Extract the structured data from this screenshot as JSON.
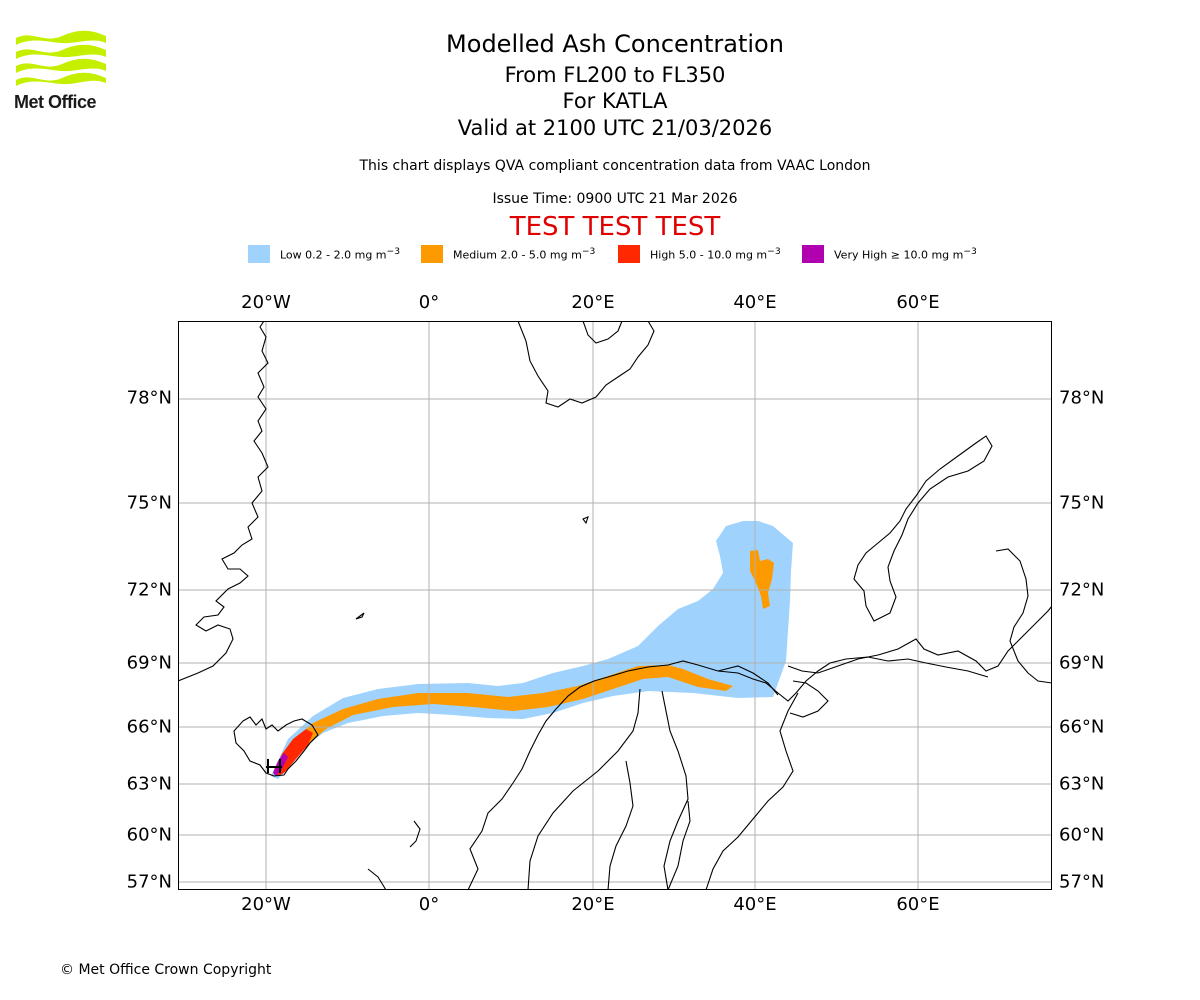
{
  "logo": {
    "name": "Met Office"
  },
  "title": {
    "main": "Modelled Ash Concentration",
    "levels": "From FL200 to FL350",
    "volcano": "For KATLA",
    "valid": "Valid at 2100 UTC 21/03/2026",
    "description": "This chart displays QVA compliant concentration data from VAAC London",
    "issue_time": "Issue Time: 0900 UTC 21 Mar 2026",
    "test_banner": "TEST TEST TEST"
  },
  "legend": {
    "low": {
      "label": "Low 0.2 - 2.0 mg m",
      "color": "#9fd3fd"
    },
    "medium": {
      "label": "Medium 2.0 - 5.0 mg m",
      "color": "#fd9a00"
    },
    "high": {
      "label": "High 5.0 - 10.0 mg m",
      "color": "#ff2800"
    },
    "very_high": {
      "label": "Very High  ≥  10.0 mg m",
      "color": "#b000b0"
    },
    "unit_exponent": "−3"
  },
  "axes": {
    "lon_labels": [
      "20°W",
      "0°",
      "20°E",
      "40°E",
      "60°E"
    ],
    "lat_labels": [
      "78°N",
      "75°N",
      "72°N",
      "69°N",
      "66°N",
      "63°N",
      "60°N",
      "57°N"
    ]
  },
  "copyright": "© Met Office Crown Copyright"
}
